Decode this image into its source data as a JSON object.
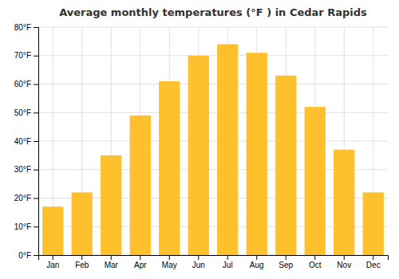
{
  "chart_data": {
    "type": "bar",
    "title": "Average monthly temperatures (°F ) in Cedar Rapids",
    "categories": [
      "Jan",
      "Feb",
      "Mar",
      "Apr",
      "May",
      "Jun",
      "Jul",
      "Aug",
      "Sep",
      "Oct",
      "Nov",
      "Dec"
    ],
    "values": [
      17,
      22,
      35,
      49,
      61,
      70,
      74,
      71,
      63,
      52,
      37,
      22
    ],
    "color": "#FFC02E",
    "ylim": [
      0,
      80
    ],
    "yticks": [
      {
        "value": 0,
        "label": "0°F"
      },
      {
        "value": 10,
        "label": "10°F"
      },
      {
        "value": 20,
        "label": "20°F"
      },
      {
        "value": 30,
        "label": "30°F"
      },
      {
        "value": 40,
        "label": "40°F"
      },
      {
        "value": 50,
        "label": "50°F"
      },
      {
        "value": 60,
        "label": "60°F"
      },
      {
        "value": 70,
        "label": "70°F"
      },
      {
        "value": 80,
        "label": "80°F"
      }
    ],
    "grid": true
  }
}
